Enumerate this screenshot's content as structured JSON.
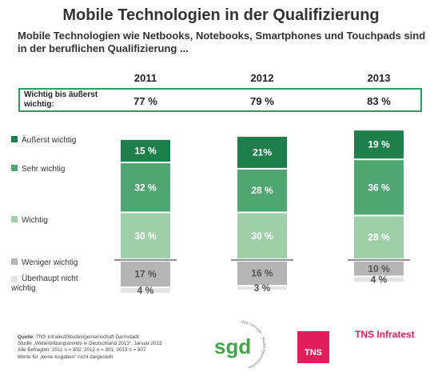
{
  "title": "Mobile Technologien in der Qualifizierung",
  "subtitle": "Mobile Technologien wie Netbooks, Notebooks, Smartphones und Touchpads sind in der beruflichen Qualifizierung ...",
  "summary": {
    "label": "Wichtig bis äußerst wichtig:",
    "values": [
      "77 %",
      "79 %",
      "83 %"
    ]
  },
  "colors": {
    "aeusserst": "#1e7f4c",
    "sehr": "#4fa672",
    "wichtig": "#9fcfa9",
    "weniger": "#b5b5b5",
    "ueberhaupt": "#e4e4e4",
    "accent": "#2e9a5b",
    "tns": "#e21d5b"
  },
  "chart_data": {
    "type": "bar",
    "stacked": true,
    "categories": [
      "2011",
      "2012",
      "2013"
    ],
    "series": [
      {
        "name": "Äußerst wichtig",
        "values": [
          15,
          21,
          19
        ],
        "labels": [
          "15 %",
          "21%",
          "19 %"
        ]
      },
      {
        "name": "Sehr wichtig",
        "values": [
          32,
          28,
          36
        ],
        "labels": [
          "32 %",
          "28 %",
          "36 %"
        ]
      },
      {
        "name": "Wichtig",
        "values": [
          30,
          30,
          28
        ],
        "labels": [
          "30 %",
          "30 %",
          "28 %"
        ]
      },
      {
        "name": "Weniger wichtig",
        "values": [
          17,
          16,
          10
        ],
        "labels": [
          "17 %",
          "16 %",
          "10 %"
        ]
      },
      {
        "name": "Überhaupt nicht wichtig",
        "values": [
          4,
          3,
          4
        ],
        "labels": [
          "4 %",
          "3 %",
          "4 %"
        ]
      }
    ],
    "legend_placement": "left"
  },
  "footnote": {
    "source_label": "Quelle:",
    "source_text": "TNS Infratest/Studiengemeinschaft Darmstadt",
    "line2": "Studie „Weiterbildungstrends in Deutschland 2013“, Januar 2013",
    "line3": "Alle Befragten: 2011 n = 302; 2012 n = 301; 2013 n = 307",
    "line4": "Werte für „keine Angaben“ nicht dargestellt"
  },
  "logos": {
    "sgd": "sgd",
    "sgd_ring": "Ihre Lernzeit · Studiengemeinschaft",
    "tns_box": "TNS",
    "tns_infratest": "TNS Infratest"
  }
}
